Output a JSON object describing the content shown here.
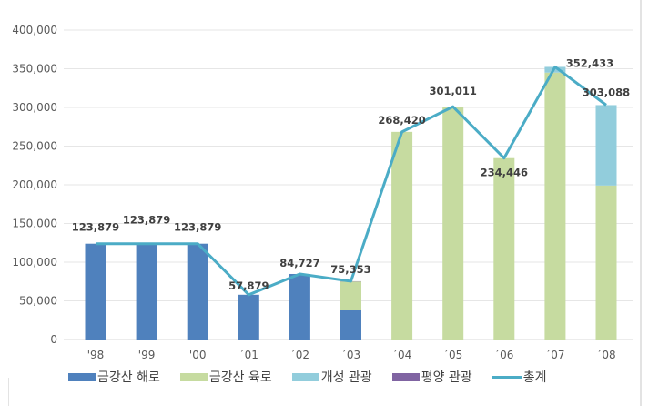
{
  "chart_data": {
    "type": "bar",
    "stacked": true,
    "categories": [
      "'98",
      "'99",
      "'00",
      "´01",
      "´02",
      "´03",
      "´04",
      "´05",
      "´06",
      "´07",
      "´08"
    ],
    "series": [
      {
        "name": "금강산 해로",
        "color": "#4f81bd",
        "values": [
          123879,
          123879,
          123879,
          57879,
          84727,
          38000,
          0,
          0,
          0,
          0,
          0
        ]
      },
      {
        "name": "금강산 육로",
        "color": "#c6dba0",
        "values": [
          0,
          0,
          0,
          0,
          0,
          37000,
          268420,
          300000,
          234446,
          345000,
          199000
        ]
      },
      {
        "name": "개성 관광",
        "color": "#92cddc",
        "values": [
          0,
          0,
          0,
          0,
          0,
          0,
          0,
          0,
          0,
          7400,
          104000
        ]
      },
      {
        "name": "평양 관광",
        "color": "#8064a2",
        "values": [
          0,
          0,
          0,
          0,
          0,
          353,
          0,
          1011,
          0,
          0,
          0
        ]
      }
    ],
    "line": {
      "name": "총계",
      "color": "#4bacc6",
      "values": [
        123879,
        123879,
        123879,
        57879,
        84727,
        75353,
        268420,
        301011,
        234446,
        352433,
        303088
      ]
    },
    "data_labels": [
      "123,879",
      "123,879",
      "123,879",
      "57,879",
      "84,727",
      "75,353",
      "268,420",
      "301,011",
      "234,446",
      "352,433",
      "303,088"
    ],
    "yticks": [
      "0",
      "50,000",
      "100,000",
      "150,000",
      "200,000",
      "250,000",
      "300,000",
      "350,000",
      "400,000"
    ],
    "ylim": [
      0,
      400000
    ],
    "grid": true,
    "legend_position": "bottom"
  }
}
